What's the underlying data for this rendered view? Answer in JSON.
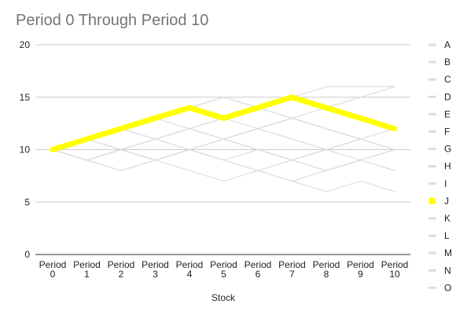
{
  "chart_data": {
    "type": "line",
    "title": "Period 0 Through Period 10",
    "xlabel": "Stock",
    "ylabel": "",
    "ylim": [
      0,
      20
    ],
    "yticks": [
      0,
      5,
      10,
      15,
      20
    ],
    "categories": [
      [
        "Period",
        "0"
      ],
      [
        "Period",
        "1"
      ],
      [
        "Period",
        "2"
      ],
      [
        "Period",
        "3"
      ],
      [
        "Period",
        "4"
      ],
      [
        "Period",
        "5"
      ],
      [
        "Period",
        "6"
      ],
      [
        "Period",
        "7"
      ],
      [
        "Period",
        "8"
      ],
      [
        "Period",
        "9"
      ],
      [
        "Period",
        "10"
      ]
    ],
    "grid": true,
    "legend_position": "right",
    "highlight_series": "J",
    "colors": {
      "highlight": "#ffff00",
      "dimmed": "#dddddd",
      "grid": "#cccccc",
      "baseline": "#333333"
    },
    "series": [
      {
        "name": "A",
        "values": [
          10,
          11,
          12,
          13,
          14,
          15,
          14,
          13,
          12,
          11,
          10
        ]
      },
      {
        "name": "B",
        "values": [
          10,
          9,
          10,
          11,
          12,
          13,
          14,
          15,
          16,
          16,
          16
        ]
      },
      {
        "name": "C",
        "values": [
          10,
          9,
          8,
          9,
          10,
          11,
          12,
          13,
          12,
          11,
          10
        ]
      },
      {
        "name": "D",
        "values": [
          10,
          11,
          12,
          11,
          10,
          9,
          8,
          7,
          6,
          7,
          6
        ]
      },
      {
        "name": "E",
        "values": [
          10,
          11,
          10,
          9,
          8,
          7,
          8,
          9,
          10,
          11,
          10
        ]
      },
      {
        "name": "F",
        "values": [
          10,
          9,
          10,
          11,
          12,
          11,
          10,
          9,
          8,
          9,
          10
        ]
      },
      {
        "name": "G",
        "values": [
          10,
          11,
          12,
          13,
          14,
          15,
          14,
          13,
          12,
          11,
          10
        ]
      },
      {
        "name": "H",
        "values": [
          10,
          9,
          8,
          9,
          10,
          9,
          8,
          7,
          8,
          9,
          10
        ]
      },
      {
        "name": "I",
        "values": [
          10,
          11,
          12,
          13,
          12,
          11,
          12,
          13,
          14,
          15,
          16
        ]
      },
      {
        "name": "J",
        "values": [
          10,
          11,
          12,
          13,
          14,
          13,
          14,
          15,
          14,
          13,
          12
        ]
      },
      {
        "name": "K",
        "values": [
          10,
          11,
          10,
          11,
          12,
          13,
          12,
          11,
          10,
          9,
          8
        ]
      },
      {
        "name": "L",
        "values": [
          10,
          9,
          10,
          9,
          10,
          11,
          10,
          9,
          10,
          11,
          10
        ]
      },
      {
        "name": "M",
        "values": [
          10,
          11,
          12,
          11,
          12,
          11,
          12,
          13,
          12,
          11,
          10
        ]
      },
      {
        "name": "N",
        "values": [
          10,
          11,
          10,
          9,
          10,
          11,
          12,
          11,
          10,
          11,
          12
        ]
      },
      {
        "name": "O",
        "values": [
          10,
          9,
          10,
          11,
          10,
          9,
          10,
          9,
          8,
          9,
          8
        ]
      }
    ]
  }
}
